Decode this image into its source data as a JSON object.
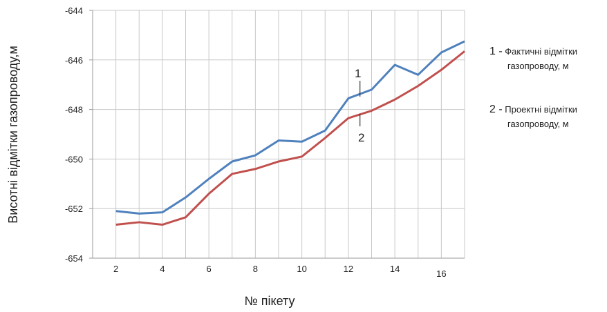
{
  "chart_data": {
    "type": "line",
    "x": [
      2,
      3,
      4,
      5,
      6,
      7,
      8,
      9,
      10,
      11,
      12,
      13,
      14,
      15,
      16,
      17
    ],
    "xticks": [
      2,
      4,
      6,
      8,
      10,
      12,
      14,
      16
    ],
    "xlim": [
      1,
      17
    ],
    "ylim": [
      -654,
      -644
    ],
    "yticks": [
      -654,
      -652,
      -650,
      -648,
      -646,
      -644
    ],
    "ylabel": "Висотні відмітки газопроводу,м",
    "xlabel": "№ пікету",
    "grid": true,
    "series": [
      {
        "name": "1",
        "color": "#4f81bd",
        "values": [
          -652.1,
          -652.2,
          -652.15,
          -651.55,
          -650.8,
          -650.1,
          -649.85,
          -649.25,
          -649.3,
          -648.85,
          -647.55,
          -647.2,
          -646.2,
          -646.6,
          -645.7,
          -645.25
        ]
      },
      {
        "name": "2",
        "color": "#c0504d",
        "values": [
          -652.65,
          -652.55,
          -652.65,
          -652.35,
          -651.4,
          -650.6,
          -650.4,
          -650.1,
          -649.9,
          -649.15,
          -648.35,
          -648.05,
          -647.6,
          -647.05,
          -646.4,
          -645.65
        ]
      }
    ],
    "annotations": [
      "1",
      "2"
    ],
    "legend": [
      {
        "num": "1 -",
        "text1": "Фактичні  відмітки",
        "text2": "газопроводу, м"
      },
      {
        "num": "2 -",
        "text1": "Проектні  відмітки",
        "text2": "газопроводу, м"
      }
    ]
  }
}
